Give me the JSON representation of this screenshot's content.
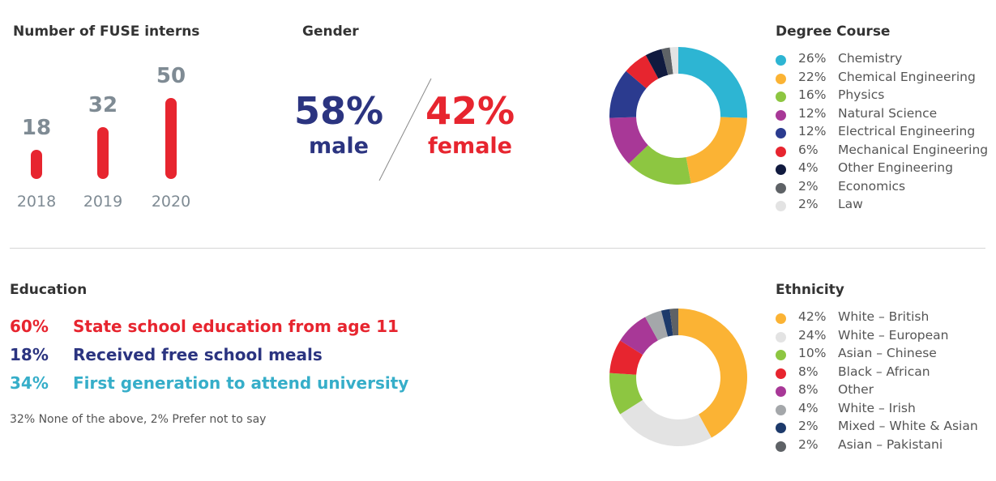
{
  "colors": {
    "red": "#e7252f",
    "navy": "#2b3480",
    "teal": "#36aec9",
    "grey": "#7f8b94"
  },
  "interns": {
    "title": "Number of FUSE interns",
    "bars": [
      {
        "year": "2018",
        "value": 18
      },
      {
        "year": "2019",
        "value": 32
      },
      {
        "year": "2020",
        "value": 50
      }
    ]
  },
  "gender": {
    "title": "Gender",
    "male": {
      "pct": "58%",
      "label": "male"
    },
    "female": {
      "pct": "42%",
      "label": "female"
    }
  },
  "education": {
    "title": "Education",
    "rows": [
      {
        "pct": "60%",
        "text": "State school education from age 11",
        "color": "#e7252f"
      },
      {
        "pct": "18%",
        "text": "Received free school meals",
        "color": "#2b3480"
      },
      {
        "pct": "34%",
        "text": "First generation to attend university",
        "color": "#36aec9"
      }
    ],
    "footnote": "32% None of the above, 2% Prefer not to say"
  },
  "chart_data": [
    {
      "type": "bar",
      "title": "Number of FUSE interns",
      "categories": [
        "2018",
        "2019",
        "2020"
      ],
      "values": [
        18,
        32,
        50
      ]
    },
    {
      "type": "pie",
      "title": "Degree Course",
      "slices": [
        {
          "label": "Chemistry",
          "pct_label": "26%",
          "value": 26,
          "color": "#2db5d3"
        },
        {
          "label": "Chemical Engineering",
          "pct_label": "22%",
          "value": 22,
          "color": "#fbb334"
        },
        {
          "label": "Physics",
          "pct_label": "16%",
          "value": 16,
          "color": "#8dc641"
        },
        {
          "label": "Natural Science",
          "pct_label": "12%",
          "value": 12,
          "color": "#a83897"
        },
        {
          "label": "Electrical Engineering",
          "pct_label": "12%",
          "value": 12,
          "color": "#2b3b8f"
        },
        {
          "label": "Mechanical Engineering",
          "pct_label": "6%",
          "value": 6,
          "color": "#e7252f"
        },
        {
          "label": "Other Engineering",
          "pct_label": "4%",
          "value": 4,
          "color": "#101a3f"
        },
        {
          "label": "Economics",
          "pct_label": "2%",
          "value": 2,
          "color": "#5e6266"
        },
        {
          "label": "Law",
          "pct_label": "2%",
          "value": 2,
          "color": "#e3e3e3"
        }
      ]
    },
    {
      "type": "pie",
      "title": "Ethnicity",
      "slices": [
        {
          "label": "White – British",
          "pct_label": "42%",
          "value": 42,
          "color": "#fbb334"
        },
        {
          "label": "White – European",
          "pct_label": "24%",
          "value": 24,
          "color": "#e3e3e3"
        },
        {
          "label": "Asian – Chinese",
          "pct_label": "10%",
          "value": 10,
          "color": "#8dc641"
        },
        {
          "label": "Black – African",
          "pct_label": "8%",
          "value": 8,
          "color": "#e7252f"
        },
        {
          "label": "Other",
          "pct_label": "8%",
          "value": 8,
          "color": "#a83897"
        },
        {
          "label": "White – Irish",
          "pct_label": "4%",
          "value": 4,
          "color": "#a4a7aa"
        },
        {
          "label": "Mixed – White & Asian",
          "pct_label": "2%",
          "value": 2,
          "color": "#1d3a6b"
        },
        {
          "label": "Asian – Pakistani",
          "pct_label": "2%",
          "value": 2,
          "color": "#5e6266"
        }
      ]
    }
  ]
}
